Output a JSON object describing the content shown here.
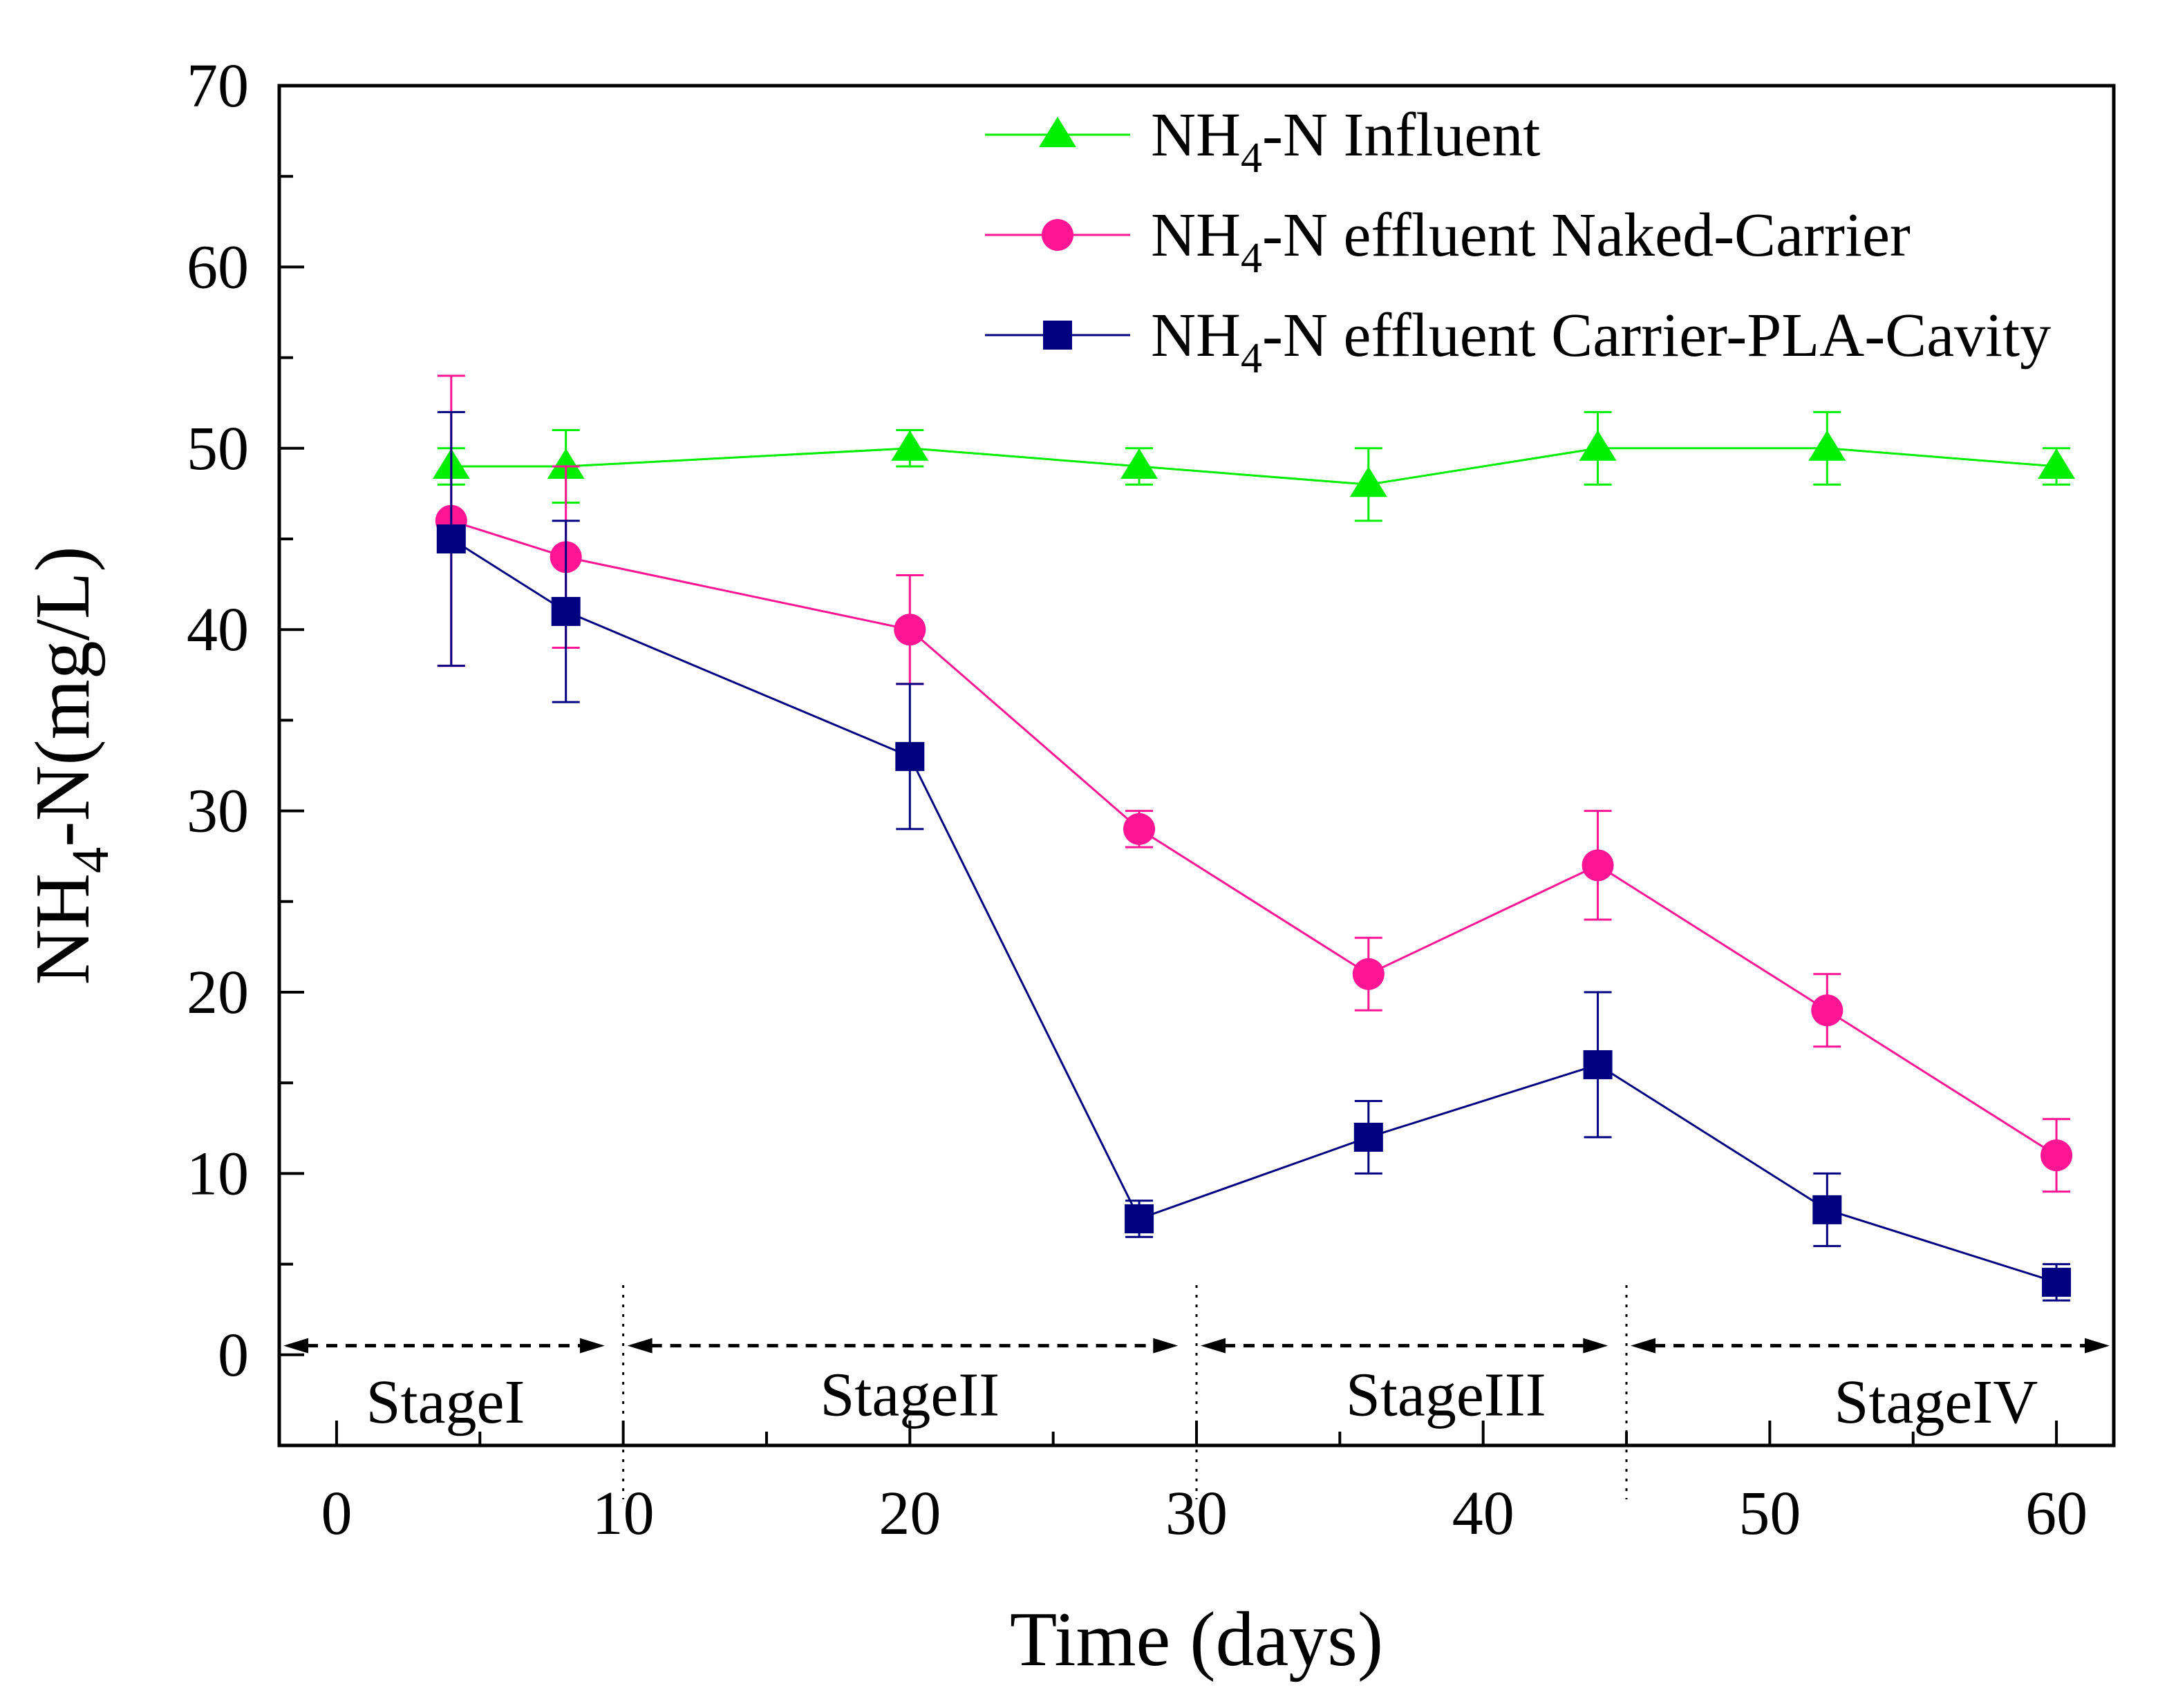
{
  "chart_data": {
    "type": "line",
    "title": "",
    "xlabel": "Time (days)",
    "ylabel": {
      "pre": "NH",
      "sub": "4",
      "post": "-N(mg/L)"
    },
    "xlim": [
      -2,
      62
    ],
    "ylim": [
      -5,
      70
    ],
    "xticks": [
      0,
      10,
      20,
      30,
      40,
      50,
      60
    ],
    "yticks": [
      0,
      10,
      20,
      30,
      40,
      50,
      60,
      70
    ],
    "x_minor_step": 5,
    "y_minor_step": 5,
    "grid": false,
    "legend_position": "top-right",
    "series": [
      {
        "key": "influent",
        "legend_pre": "NH",
        "legend_sub": "4",
        "legend_post": "-N Influent",
        "color": "#00ee00",
        "marker": "triangle",
        "x": [
          4,
          8,
          20,
          28,
          36,
          44,
          52,
          60
        ],
        "y": [
          49,
          49,
          50,
          49,
          48,
          50,
          50,
          49
        ],
        "err": [
          1,
          2,
          1,
          1,
          2,
          2,
          2,
          1
        ]
      },
      {
        "key": "naked",
        "legend_pre": "NH",
        "legend_sub": "4",
        "legend_post": "-N effluent Naked-Carrier",
        "color": "#ff1493",
        "marker": "circle",
        "x": [
          4,
          8,
          20,
          28,
          36,
          44,
          52,
          60
        ],
        "y": [
          46,
          44,
          40,
          29,
          21,
          27,
          19,
          11
        ],
        "err": [
          8,
          5,
          3,
          1,
          2,
          3,
          2,
          2
        ]
      },
      {
        "key": "pla",
        "legend_pre": "NH",
        "legend_sub": "4",
        "legend_post": "-N effluent Carrier-PLA-Cavity",
        "color": "#000080",
        "marker": "square",
        "x": [
          4,
          8,
          20,
          28,
          36,
          44,
          52,
          60
        ],
        "y": [
          45,
          41,
          33,
          7.5,
          12,
          16,
          8,
          4
        ],
        "err": [
          7,
          5,
          4,
          1,
          2,
          4,
          2,
          1
        ]
      }
    ],
    "stages": {
      "y": 0.5,
      "boundaries": [
        10,
        30,
        45
      ],
      "arrows": [
        {
          "from": -2,
          "to": 9.5
        },
        {
          "from": 10,
          "to": 29.5
        },
        {
          "from": 30,
          "to": 44.5
        },
        {
          "from": 45,
          "to": 62
        }
      ],
      "labels": [
        {
          "text": "StageI",
          "x": 3.8,
          "y": -2.6
        },
        {
          "text": "StageII",
          "x": 20,
          "y": -2.2
        },
        {
          "text": "StageIII",
          "x": 38.7,
          "y": -2.2
        },
        {
          "text": "StageIV",
          "x": 55.8,
          "y": -2.6
        }
      ]
    }
  }
}
